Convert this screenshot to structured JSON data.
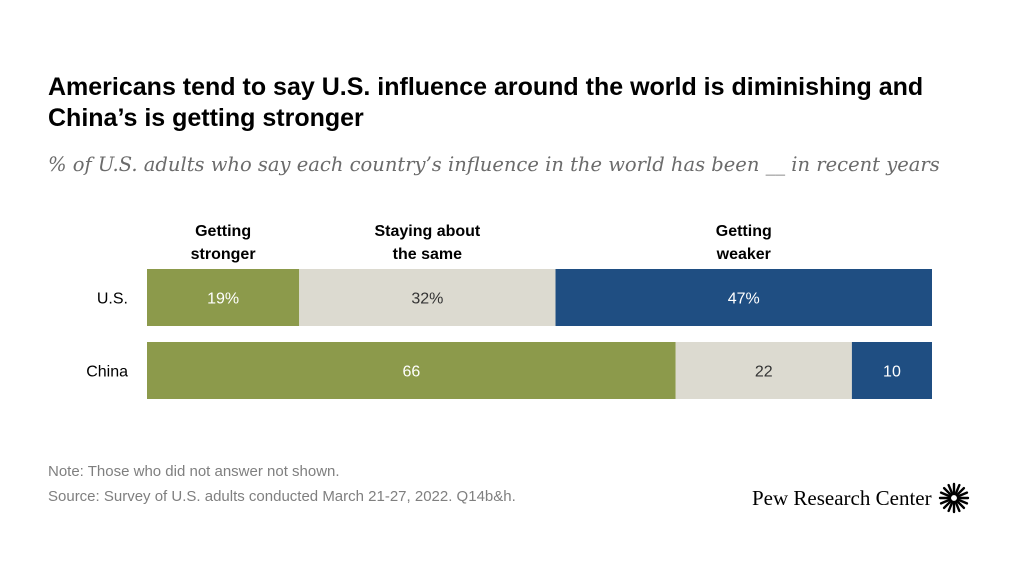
{
  "header": {
    "title": "Americans tend to say U.S. influence around the world is diminishing and China’s is getting stronger",
    "subtitle": "% of U.S. adults who say each country’s influence in the world has been __ in recent years"
  },
  "chart_data": {
    "type": "bar",
    "orientation": "horizontal",
    "stacked": true,
    "title": "Americans tend to say U.S. influence around the world is diminishing and China’s is getting stronger",
    "subtitle": "% of U.S. adults who say each country’s influence in the world has been __ in recent years",
    "categories": [
      "U.S.",
      "China"
    ],
    "series": [
      {
        "name": "Getting stronger",
        "name_lines": [
          "Getting",
          "stronger"
        ],
        "values": [
          19,
          66
        ],
        "labels": [
          "19%",
          "66"
        ],
        "color": "#8c9a4b",
        "label_color": "#ffffff"
      },
      {
        "name": "Staying about the same",
        "name_lines": [
          "Staying about",
          "the same"
        ],
        "values": [
          32,
          22
        ],
        "labels": [
          "32%",
          "22"
        ],
        "color": "#dcdad0",
        "label_color": "#333333"
      },
      {
        "name": "Getting weaker",
        "name_lines": [
          "Getting",
          "weaker"
        ],
        "values": [
          47,
          10
        ],
        "labels": [
          "47%",
          "10"
        ],
        "color": "#1f4e82",
        "label_color": "#ffffff"
      }
    ],
    "xlim": [
      0,
      98
    ],
    "grid": false,
    "legend": "top"
  },
  "footer": {
    "note": "Note: Those who did not answer not shown.",
    "source": "Source: Survey of U.S. adults conducted March 21-27, 2022. Q14b&h.",
    "brand": "Pew Research Center"
  }
}
